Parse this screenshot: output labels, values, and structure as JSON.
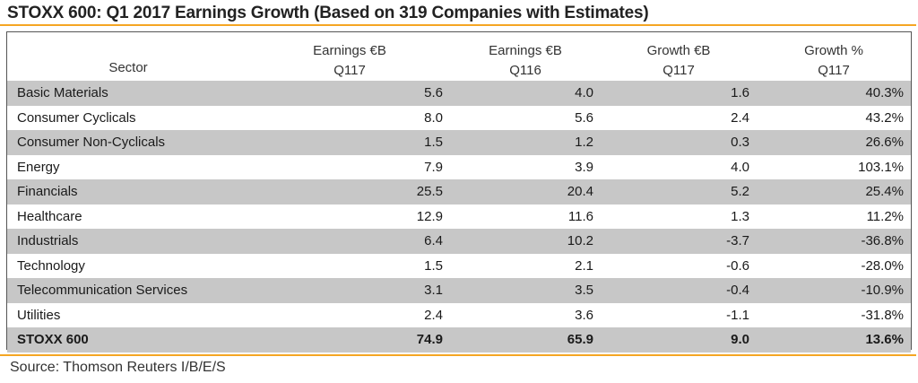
{
  "title": "STOXX 600: Q1 2017 Earnings Growth (Based on 319 Companies with Estimates)",
  "source": "Source: Thomson Reuters I/B/E/S",
  "colors": {
    "accent_rule": "#f5a623",
    "shaded_row": "#c7c7c7",
    "border": "#555555"
  },
  "chart_data": {
    "type": "table",
    "columns": [
      {
        "line1": "",
        "line2": "Sector"
      },
      {
        "line1": "Earnings €B",
        "line2": "Q117"
      },
      {
        "line1": "Earnings €B",
        "line2": "Q116"
      },
      {
        "line1": "Growth €B",
        "line2": "Q117"
      },
      {
        "line1": "Growth %",
        "line2": "Q117"
      }
    ],
    "rows": [
      [
        "Basic Materials",
        "5.6",
        "4.0",
        "1.6",
        "40.3%"
      ],
      [
        "Consumer Cyclicals",
        "8.0",
        "5.6",
        "2.4",
        "43.2%"
      ],
      [
        "Consumer Non-Cyclicals",
        "1.5",
        "1.2",
        "0.3",
        "26.6%"
      ],
      [
        "Energy",
        "7.9",
        "3.9",
        "4.0",
        "103.1%"
      ],
      [
        "Financials",
        "25.5",
        "20.4",
        "5.2",
        "25.4%"
      ],
      [
        "Healthcare",
        "12.9",
        "11.6",
        "1.3",
        "11.2%"
      ],
      [
        "Industrials",
        "6.4",
        "10.2",
        "-3.7",
        "-36.8%"
      ],
      [
        "Technology",
        "1.5",
        "2.1",
        "-0.6",
        "-28.0%"
      ],
      [
        "Telecommunication Services",
        "3.1",
        "3.5",
        "-0.4",
        "-10.9%"
      ],
      [
        "Utilities",
        "2.4",
        "3.6",
        "-1.1",
        "-31.8%"
      ]
    ],
    "total": [
      "STOXX 600",
      "74.9",
      "65.9",
      "9.0",
      "13.6%"
    ]
  }
}
